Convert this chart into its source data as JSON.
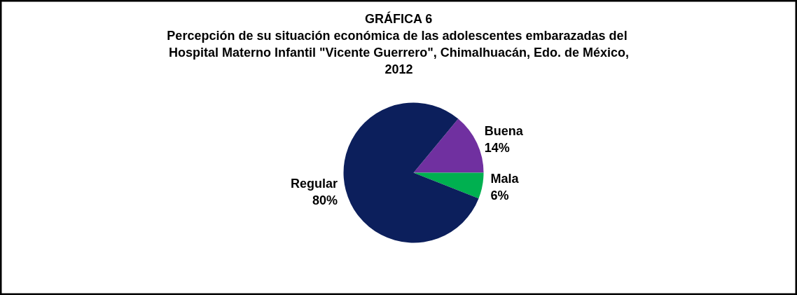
{
  "chart_data": {
    "type": "pie",
    "title": "GRÁFICA 6",
    "subtitle": "Percepción de  su situación económica de las adolescentes embarazadas del Hospital Materno Infantil \"Vicente Guerrero\", Chimalhuacán, Edo. de México, 2012",
    "categories": [
      "Buena",
      "Mala",
      "Regular"
    ],
    "values": [
      14,
      6,
      80
    ],
    "colors": [
      "#7030a0",
      "#00b050",
      "#0c1f5c"
    ],
    "value_labels": [
      "14%",
      "6%",
      "80%"
    ]
  }
}
